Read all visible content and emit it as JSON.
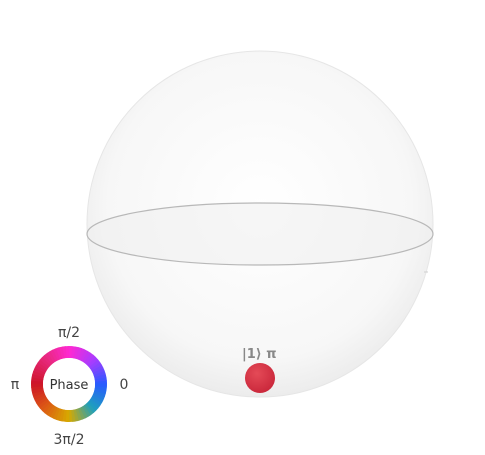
{
  "bloch_sphere": {
    "state_label": "|1⟩ π",
    "vector_color": "#b11e2f",
    "point_color": "#d7303f",
    "sphere_stroke": "#e3e3e3",
    "equator_stroke": "#b8b8b8"
  },
  "phase_wheel": {
    "center_label": "Phase",
    "top_label": "π/2",
    "left_label": "π",
    "right_label": "0",
    "bottom_label": "3π/2"
  }
}
